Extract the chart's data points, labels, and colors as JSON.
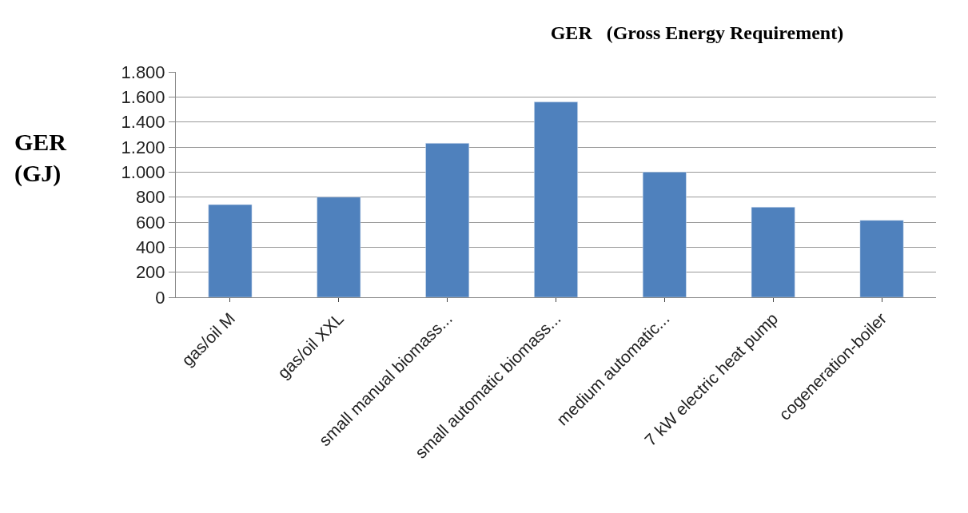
{
  "chart_data": {
    "type": "bar",
    "title": "GER   (Gross Energy Requirement)",
    "ylabel": "GER (GJ)",
    "categories": [
      "gas/oil M",
      "gas/oil XXL",
      "small manual biomass...",
      "small automatic biomass...",
      "medium automatic...",
      "7 kW electric heat pump",
      "cogeneration-boiler"
    ],
    "values": [
      740,
      800,
      1230,
      1560,
      1000,
      720,
      615
    ],
    "color": "#4f81bd",
    "ylim": [
      0,
      1800
    ],
    "yticks": [
      0,
      200,
      400,
      600,
      {
        "value": 800,
        "label": "800"
      },
      {
        "value": 1000,
        "label": "1.000"
      },
      {
        "value": 1200,
        "label": "1.200"
      },
      {
        "value": 1400,
        "label": "1.400"
      },
      {
        "value": 1600,
        "label": "1.600"
      },
      {
        "value": 1800,
        "label": "1.800"
      }
    ],
    "grid": "y",
    "legend": false
  }
}
